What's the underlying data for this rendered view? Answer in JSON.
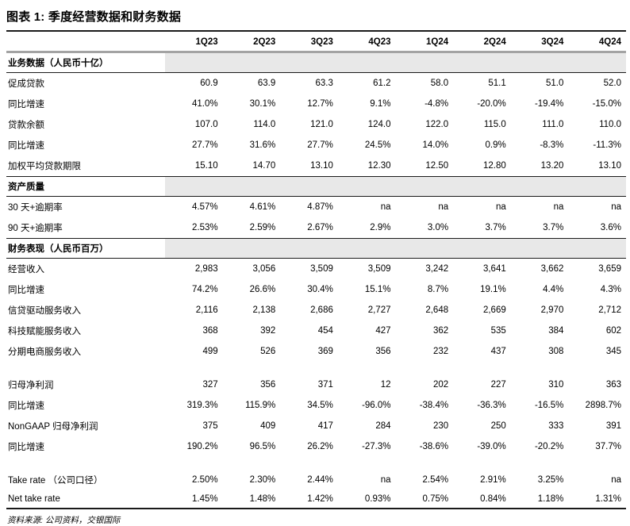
{
  "title": "图表 1: 季度经营数据和财务数据",
  "footer": {
    "source": "资料来源: 公司资料，交银国际"
  },
  "colors": {
    "text": "#000000",
    "header_rule": "#a3a3a3",
    "section_fill": "#e8e8e8",
    "rule": "#1a1a1a"
  },
  "table": {
    "columns": [
      "1Q23",
      "2Q23",
      "3Q23",
      "4Q23",
      "1Q24",
      "2Q24",
      "3Q24",
      "4Q24"
    ],
    "rows": [
      {
        "type": "section",
        "label": "业务数据（人民币十亿）"
      },
      {
        "type": "data",
        "label": "促成贷款",
        "values": [
          "60.9",
          "63.9",
          "63.3",
          "61.2",
          "58.0",
          "51.1",
          "51.0",
          "52.0"
        ]
      },
      {
        "type": "data",
        "label": "同比增速",
        "values": [
          "41.0%",
          "30.1%",
          "12.7%",
          "9.1%",
          "-4.8%",
          "-20.0%",
          "-19.4%",
          "-15.0%"
        ]
      },
      {
        "type": "data",
        "label": "贷款余额",
        "values": [
          "107.0",
          "114.0",
          "121.0",
          "124.0",
          "122.0",
          "115.0",
          "111.0",
          "110.0"
        ]
      },
      {
        "type": "data",
        "label": "同比增速",
        "values": [
          "27.7%",
          "31.6%",
          "27.7%",
          "24.5%",
          "14.0%",
          "0.9%",
          "-8.3%",
          "-11.3%"
        ]
      },
      {
        "type": "data",
        "label": "加权平均贷款期限",
        "values": [
          "15.10",
          "14.70",
          "13.10",
          "12.30",
          "12.50",
          "12.80",
          "13.20",
          "13.10"
        ]
      },
      {
        "type": "section",
        "label": "资产质量"
      },
      {
        "type": "data",
        "label": "30 天+逾期率",
        "values": [
          "4.57%",
          "4.61%",
          "4.87%",
          "na",
          "na",
          "na",
          "na",
          "na"
        ]
      },
      {
        "type": "data",
        "label": "90 天+逾期率",
        "values": [
          "2.53%",
          "2.59%",
          "2.67%",
          "2.9%",
          "3.0%",
          "3.7%",
          "3.7%",
          "3.6%"
        ]
      },
      {
        "type": "section",
        "label": "财务表现（人民币百万）"
      },
      {
        "type": "data",
        "label": "经营收入",
        "values": [
          "2,983",
          "3,056",
          "3,509",
          "3,509",
          "3,242",
          "3,641",
          "3,662",
          "3,659"
        ]
      },
      {
        "type": "data",
        "label": "同比增速",
        "values": [
          "74.2%",
          "26.6%",
          "30.4%",
          "15.1%",
          "8.7%",
          "19.1%",
          "4.4%",
          "4.3%"
        ]
      },
      {
        "type": "data",
        "label": "信贷驱动服务收入",
        "values": [
          "2,116",
          "2,138",
          "2,686",
          "2,727",
          "2,648",
          "2,669",
          "2,970",
          "2,712"
        ]
      },
      {
        "type": "data",
        "label": "科技赋能服务收入",
        "values": [
          "368",
          "392",
          "454",
          "427",
          "362",
          "535",
          "384",
          "602"
        ]
      },
      {
        "type": "data",
        "label": "分期电商服务收入",
        "values": [
          "499",
          "526",
          "369",
          "356",
          "232",
          "437",
          "308",
          "345"
        ]
      },
      {
        "type": "spacer"
      },
      {
        "type": "data",
        "label": "归母净利润",
        "values": [
          "327",
          "356",
          "371",
          "12",
          "202",
          "227",
          "310",
          "363"
        ]
      },
      {
        "type": "data",
        "label": "同比增速",
        "values": [
          "319.3%",
          "115.9%",
          "34.5%",
          "-96.0%",
          "-38.4%",
          "-36.3%",
          "-16.5%",
          "2898.7%"
        ]
      },
      {
        "type": "data",
        "label": "NonGAAP 归母净利润",
        "values": [
          "375",
          "409",
          "417",
          "284",
          "230",
          "250",
          "333",
          "391"
        ]
      },
      {
        "type": "data",
        "label": "同比增速",
        "values": [
          "190.2%",
          "96.5%",
          "26.2%",
          "-27.3%",
          "-38.6%",
          "-39.0%",
          "-20.2%",
          "37.7%"
        ]
      },
      {
        "type": "spacer"
      },
      {
        "type": "data",
        "label": "Take rate （公司口径）",
        "values": [
          "2.50%",
          "2.30%",
          "2.44%",
          "na",
          "2.54%",
          "2.91%",
          "3.25%",
          "na"
        ]
      },
      {
        "type": "data",
        "label": "Net take rate",
        "last": true,
        "values": [
          "1.45%",
          "1.48%",
          "1.42%",
          "0.93%",
          "0.75%",
          "0.84%",
          "1.18%",
          "1.31%"
        ]
      }
    ]
  }
}
